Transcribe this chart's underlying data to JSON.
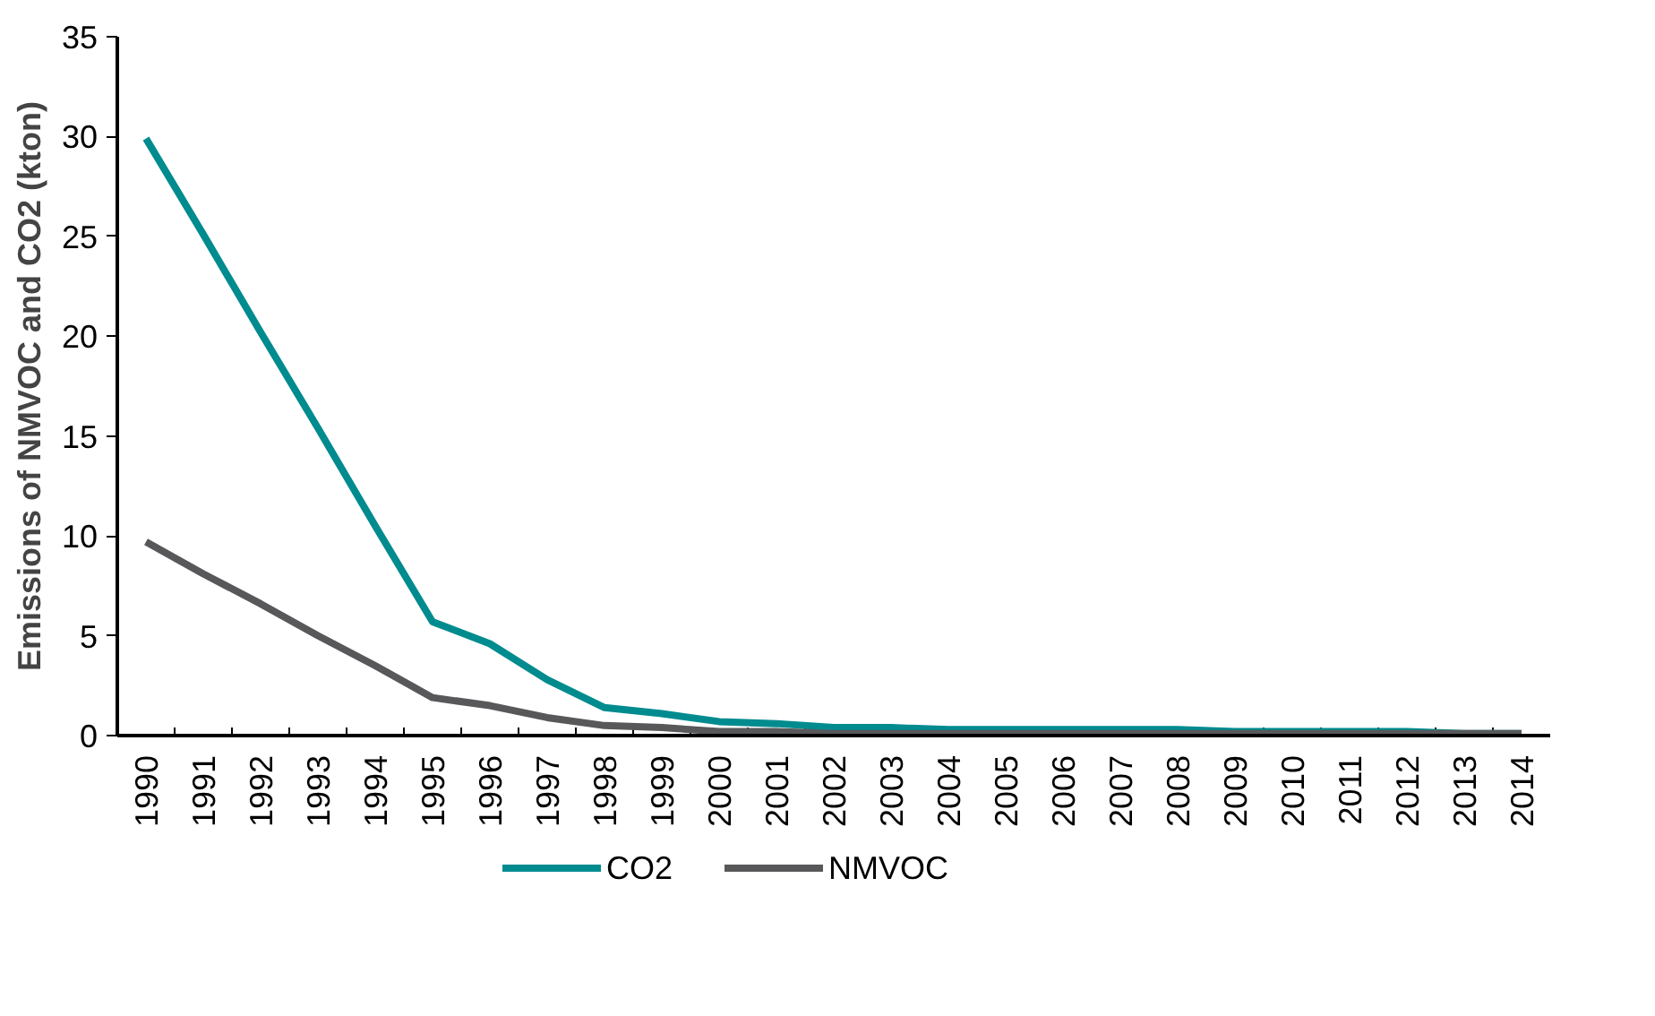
{
  "chart_data": {
    "type": "line",
    "ylabel": "Emissions of NMVOC and CO2 (kton)",
    "categories": [
      "1990",
      "1991",
      "1992",
      "1993",
      "1994",
      "1995",
      "1996",
      "1997",
      "1998",
      "1999",
      "2000",
      "2001",
      "2002",
      "2003",
      "2004",
      "2005",
      "2006",
      "2007",
      "2008",
      "2009",
      "2010",
      "2011",
      "2012",
      "2013",
      "2014"
    ],
    "series": [
      {
        "name": "CO2",
        "color": "#008b8f",
        "values": [
          29.9,
          25.1,
          20.2,
          15.4,
          10.5,
          5.7,
          4.6,
          2.8,
          1.4,
          1.1,
          0.7,
          0.6,
          0.4,
          0.4,
          0.3,
          0.3,
          0.3,
          0.3,
          0.3,
          0.2,
          0.2,
          0.2,
          0.2,
          0.1,
          0.1
        ]
      },
      {
        "name": "NMVOC",
        "color": "#58585a",
        "values": [
          9.7,
          8.1,
          6.6,
          5.0,
          3.5,
          1.9,
          1.5,
          0.9,
          0.5,
          0.4,
          0.2,
          0.2,
          0.1,
          0.1,
          0.1,
          0.1,
          0.1,
          0.1,
          0.1,
          0.1,
          0.1,
          0.1,
          0.1,
          0.1,
          0.1
        ]
      }
    ],
    "ylim": [
      0,
      35
    ],
    "yticks": [
      0,
      5,
      10,
      15,
      20,
      25,
      30,
      35
    ],
    "grid": false,
    "legend": "bottom",
    "line_style": "solid"
  }
}
